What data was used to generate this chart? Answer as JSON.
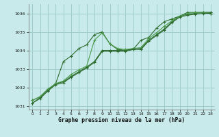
{
  "title": "Graphe pression niveau de la mer (hPa)",
  "bg_color": "#c8eaea",
  "grid_color": "#a0cccc",
  "line_color_dark": "#2d6a2d",
  "line_color_light": "#4a9a4a",
  "xlim": [
    -0.5,
    23.5
  ],
  "ylim": [
    1030.8,
    1036.5
  ],
  "yticks": [
    1031,
    1032,
    1033,
    1034,
    1035,
    1036
  ],
  "xticks": [
    0,
    1,
    2,
    3,
    4,
    5,
    6,
    7,
    8,
    9,
    10,
    11,
    12,
    13,
    14,
    15,
    16,
    17,
    18,
    19,
    20,
    21,
    22,
    23
  ],
  "series": [
    [
      1031.3,
      1031.5,
      1031.9,
      1032.2,
      1033.4,
      1033.7,
      1034.1,
      1034.3,
      1034.85,
      1035.0,
      1034.35,
      1034.05,
      1034.0,
      1034.05,
      1034.55,
      1034.7,
      1035.2,
      1035.55,
      1035.7,
      1035.85,
      1036.05,
      1036.05,
      1036.05,
      1036.05
    ],
    [
      1031.15,
      1031.45,
      1031.85,
      1032.2,
      1032.3,
      1032.6,
      1032.85,
      1033.1,
      1033.4,
      1034.0,
      1034.0,
      1034.0,
      1034.0,
      1034.1,
      1034.1,
      1034.55,
      1034.85,
      1035.15,
      1035.55,
      1035.85,
      1035.95,
      1036.0,
      1036.05,
      1036.05
    ],
    [
      1031.3,
      1031.5,
      1031.9,
      1032.2,
      1032.35,
      1032.7,
      1032.95,
      1033.15,
      1034.55,
      1034.95,
      1034.35,
      1034.1,
      1034.05,
      1034.1,
      1034.15,
      1034.65,
      1034.95,
      1035.3,
      1035.6,
      1035.85,
      1036.0,
      1036.05,
      1036.05,
      1036.0
    ],
    [
      1031.15,
      1031.4,
      1031.8,
      1032.15,
      1032.25,
      1032.55,
      1032.8,
      1033.05,
      1033.35,
      1033.95,
      1033.95,
      1033.95,
      1033.95,
      1034.05,
      1034.05,
      1034.5,
      1034.8,
      1035.1,
      1035.5,
      1035.8,
      1035.9,
      1035.95,
      1036.0,
      1036.0
    ]
  ]
}
